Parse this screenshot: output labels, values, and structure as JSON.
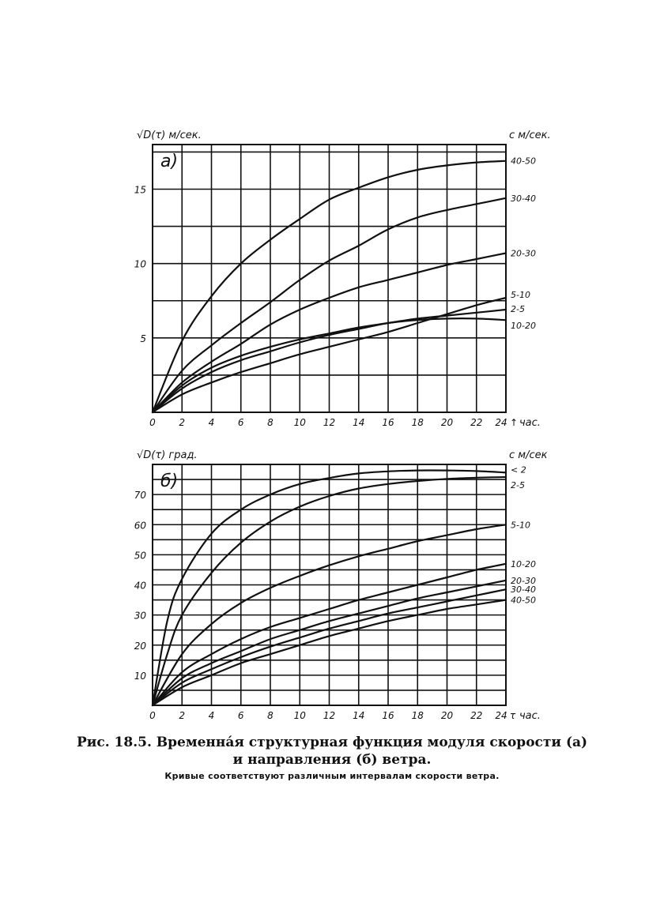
{
  "chart_data": [
    {
      "type": "line",
      "panel_label": "а)",
      "ylabel": "√D(τ)  м/сек.",
      "right_label": "с м/сек.",
      "xlabel": "час.",
      "x_axis_mark": "↑",
      "xlim": [
        0,
        24
      ],
      "ylim": [
        0,
        18
      ],
      "grid": true,
      "x_ticks": [
        "0",
        "2",
        "4",
        "6",
        "8",
        "10",
        "12",
        "14",
        "16",
        "18",
        "20",
        "22",
        "24"
      ],
      "y_ticks": [
        {
          "value": 5,
          "label": "5"
        },
        {
          "value": 10,
          "label": "10"
        },
        {
          "value": 15,
          "label": "15"
        }
      ],
      "series": [
        {
          "name": "40-50",
          "x": [
            0,
            2,
            4,
            6,
            8,
            10,
            12,
            14,
            16,
            18,
            20,
            22,
            24
          ],
          "y": [
            0,
            4.8,
            7.8,
            10.0,
            11.6,
            13.0,
            14.3,
            15.1,
            15.8,
            16.3,
            16.6,
            16.8,
            16.9
          ]
        },
        {
          "name": "30-40",
          "x": [
            0,
            2,
            4,
            6,
            8,
            10,
            12,
            14,
            16,
            18,
            20,
            22,
            24
          ],
          "y": [
            0,
            2.8,
            4.5,
            6.0,
            7.4,
            8.9,
            10.2,
            11.2,
            12.3,
            13.1,
            13.6,
            14.0,
            14.4
          ]
        },
        {
          "name": "20-30",
          "x": [
            0,
            2,
            4,
            6,
            8,
            10,
            12,
            14,
            16,
            18,
            20,
            22,
            24
          ],
          "y": [
            0,
            2.0,
            3.4,
            4.6,
            5.9,
            6.9,
            7.7,
            8.4,
            8.9,
            9.4,
            9.9,
            10.3,
            10.7
          ]
        },
        {
          "name": "5-10",
          "x": [
            0,
            2,
            4,
            6,
            8,
            10,
            12,
            14,
            16,
            18,
            20,
            22,
            24
          ],
          "y": [
            0,
            1.2,
            2.0,
            2.7,
            3.3,
            3.9,
            4.4,
            4.9,
            5.4,
            6.0,
            6.6,
            7.2,
            7.7
          ]
        },
        {
          "name": "2-5",
          "x": [
            0,
            2,
            4,
            6,
            8,
            10,
            12,
            14,
            16,
            18,
            20,
            22,
            24
          ],
          "y": [
            0,
            1.8,
            3.0,
            3.8,
            4.4,
            4.9,
            5.3,
            5.7,
            6.0,
            6.3,
            6.5,
            6.7,
            6.9
          ]
        },
        {
          "name": "10-20",
          "x": [
            0,
            2,
            4,
            6,
            8,
            10,
            12,
            14,
            16,
            18,
            20,
            22,
            24
          ],
          "y": [
            0,
            1.6,
            2.7,
            3.5,
            4.1,
            4.7,
            5.2,
            5.6,
            6.0,
            6.2,
            6.3,
            6.3,
            6.2
          ]
        }
      ]
    },
    {
      "type": "line",
      "panel_label": "б)",
      "ylabel": "√D(τ)  град.",
      "right_label": "с м/сек",
      "xlabel": "час.",
      "x_axis_mark": "τ",
      "xlim": [
        0,
        24
      ],
      "ylim": [
        0,
        80
      ],
      "grid": true,
      "x_ticks": [
        "0",
        "2",
        "4",
        "6",
        "8",
        "10",
        "12",
        "14",
        "16",
        "18",
        "20",
        "22",
        "24"
      ],
      "y_ticks": [
        {
          "value": 10,
          "label": "10"
        },
        {
          "value": 20,
          "label": "20"
        },
        {
          "value": 30,
          "label": "30"
        },
        {
          "value": 40,
          "label": "40"
        },
        {
          "value": 50,
          "label": "50"
        },
        {
          "value": 60,
          "label": "60"
        },
        {
          "value": 70,
          "label": "70"
        }
      ],
      "series": [
        {
          "name": "< 2",
          "x": [
            0,
            1,
            2,
            4,
            6,
            8,
            10,
            12,
            14,
            16,
            18,
            20,
            22,
            24
          ],
          "y": [
            0,
            28,
            42,
            57,
            65,
            70,
            73.5,
            75.5,
            77,
            77.7,
            78,
            78,
            77.8,
            77.3
          ]
        },
        {
          "name": "2-5",
          "x": [
            0,
            1,
            2,
            4,
            6,
            8,
            10,
            12,
            14,
            16,
            18,
            20,
            22,
            24
          ],
          "y": [
            0,
            17,
            30,
            44,
            54,
            61,
            66,
            69.5,
            72,
            73.5,
            74.5,
            75.2,
            75.6,
            75.8
          ]
        },
        {
          "name": "5-10",
          "x": [
            0,
            2,
            4,
            6,
            8,
            10,
            12,
            14,
            16,
            18,
            20,
            22,
            24
          ],
          "y": [
            0,
            17,
            27,
            34,
            39,
            43,
            46.5,
            49.5,
            52,
            54.5,
            56.5,
            58.5,
            60
          ]
        },
        {
          "name": "10-20",
          "x": [
            0,
            2,
            4,
            6,
            8,
            10,
            12,
            14,
            16,
            18,
            20,
            22,
            24
          ],
          "y": [
            0,
            11,
            17,
            22,
            26,
            29,
            32,
            35,
            37.5,
            40,
            42.5,
            45,
            47
          ]
        },
        {
          "name": "20-30",
          "x": [
            0,
            2,
            4,
            6,
            8,
            10,
            12,
            14,
            16,
            18,
            20,
            22,
            24
          ],
          "y": [
            0,
            9,
            14,
            18,
            22,
            25,
            28,
            30.5,
            33,
            35.5,
            37.5,
            39.5,
            41.5
          ]
        },
        {
          "name": "30-40",
          "x": [
            0,
            2,
            4,
            6,
            8,
            10,
            12,
            14,
            16,
            18,
            20,
            22,
            24
          ],
          "y": [
            0,
            7.5,
            12,
            16,
            19.5,
            22.5,
            25.5,
            28,
            30.5,
            32.5,
            34.5,
            36.5,
            38.5
          ]
        },
        {
          "name": "40-50",
          "x": [
            0,
            2,
            4,
            6,
            8,
            10,
            12,
            14,
            16,
            18,
            20,
            22,
            24
          ],
          "y": [
            0,
            6,
            10,
            14,
            17,
            20,
            23,
            25.5,
            28,
            30,
            32,
            33.5,
            35
          ]
        }
      ]
    }
  ],
  "caption": {
    "line1": "Рис. 18.5. Временна́я структурная функция модуля скорости (а)",
    "line2": "и направления (б) ветра.",
    "note": "Кривые соответствуют различным интервалам скорости ветра."
  }
}
